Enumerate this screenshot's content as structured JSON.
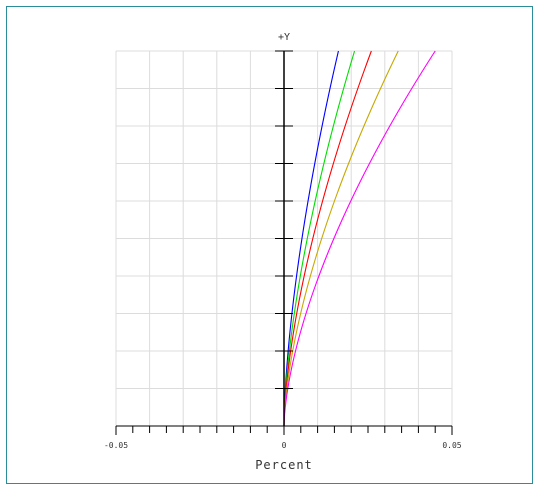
{
  "chart_data": {
    "type": "line",
    "title": "",
    "xlabel": "Percent",
    "ylabel": "+Y",
    "xlim": [
      -0.05,
      0.05
    ],
    "ylim": [
      0,
      1
    ],
    "x_tick_labels": [
      "-0.05",
      "0",
      "0.05"
    ],
    "grid": true,
    "legend": "none",
    "series": [
      {
        "color": "#0000ff",
        "x": [
          0,
          0.0016,
          0.0032,
          0.0049,
          0.0065,
          0.0081,
          0.0097,
          0.0114,
          0.013,
          0.0146,
          0.0162
        ],
        "y": [
          0,
          0.1,
          0.2,
          0.3,
          0.4,
          0.5,
          0.6,
          0.7,
          0.8,
          0.9,
          1.0
        ]
      },
      {
        "color": "#00dd00",
        "x": [
          0,
          0.0021,
          0.0042,
          0.0063,
          0.0084,
          0.0105,
          0.0126,
          0.0147,
          0.0168,
          0.0189,
          0.021
        ],
        "y": [
          0,
          0.1,
          0.2,
          0.3,
          0.4,
          0.5,
          0.6,
          0.7,
          0.8,
          0.9,
          1.0
        ]
      },
      {
        "color": "#ff0000",
        "x": [
          0,
          0.0026,
          0.0052,
          0.0078,
          0.0104,
          0.013,
          0.0156,
          0.0182,
          0.0208,
          0.0234,
          0.026
        ],
        "y": [
          0,
          0.1,
          0.2,
          0.3,
          0.4,
          0.5,
          0.6,
          0.7,
          0.8,
          0.9,
          1.0
        ]
      },
      {
        "color": "#c8a800",
        "x": [
          0,
          0.0034,
          0.0068,
          0.0102,
          0.0136,
          0.017,
          0.0204,
          0.0238,
          0.0272,
          0.0306,
          0.034
        ],
        "y": [
          0,
          0.1,
          0.2,
          0.3,
          0.4,
          0.5,
          0.6,
          0.7,
          0.8,
          0.9,
          1.0
        ]
      },
      {
        "color": "#ff00ff",
        "x": [
          0,
          0.0045,
          0.009,
          0.0135,
          0.018,
          0.0225,
          0.027,
          0.0315,
          0.036,
          0.0405,
          0.045
        ],
        "y": [
          0,
          0.1,
          0.2,
          0.3,
          0.4,
          0.5,
          0.6,
          0.7,
          0.8,
          0.9,
          1.0
        ]
      }
    ]
  }
}
